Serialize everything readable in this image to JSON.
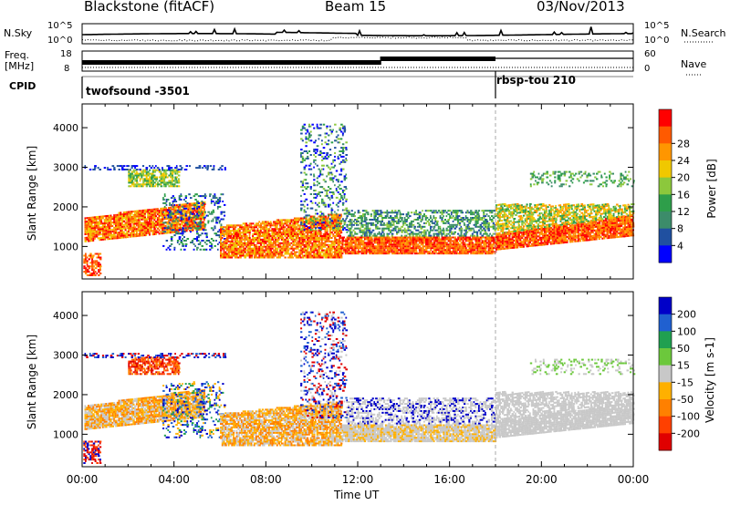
{
  "header": {
    "station": "Blackstone (fitACF)",
    "beam": "Beam 15",
    "date": "03/Nov/2013"
  },
  "sky_panel": {
    "left_label": "N.Sky",
    "right_label": "N.Search",
    "tick_top": "10^5",
    "tick_bottom": "10^0",
    "right_tick_top": "10^5",
    "right_tick_bottom": "10^0"
  },
  "freq_panel": {
    "left_label_line1": "Freq.",
    "left_label_line2": "[MHz]",
    "right_label": "Nave",
    "left_tick_top": "18",
    "left_tick_bottom": "8",
    "right_tick_top": "60",
    "right_tick_bottom": "0"
  },
  "cpid_panel": {
    "label": "CPID",
    "mode1": "twofsound -3501",
    "mode2": "rbsp-tou 210"
  },
  "colors": {
    "power": [
      "#0000ff",
      "#2050a0",
      "#3c8c6a",
      "#2e9e4a",
      "#8cc83c",
      "#f0c800",
      "#ff9600",
      "#ff5a00",
      "#ff0000"
    ],
    "velocity": [
      "#0000c8",
      "#2060d0",
      "#20a050",
      "#6cc83c",
      "#c8c8c8",
      "#ffb000",
      "#ff8000",
      "#ff4000",
      "#e00000"
    ]
  },
  "chart_data": [
    {
      "type": "heatmap",
      "title": "",
      "ylabel": "Slant Range [km]",
      "xlabel": "",
      "ylim": [
        180,
        4600
      ],
      "x_ticks": [
        "00:00",
        "04:00",
        "08:00",
        "12:00",
        "16:00",
        "20:00",
        "00:00"
      ],
      "y_ticks": [
        1000,
        2000,
        3000,
        4000
      ],
      "colorbar_label": "Power [dB]",
      "colorbar_ticks": [
        4,
        8,
        12,
        16,
        20,
        24,
        28
      ],
      "grid": false
    },
    {
      "type": "heatmap",
      "title": "",
      "ylabel": "Slant Range [km]",
      "xlabel": "Time UT",
      "ylim": [
        180,
        4600
      ],
      "x_ticks": [
        "00:00",
        "04:00",
        "08:00",
        "12:00",
        "16:00",
        "20:00",
        "00:00"
      ],
      "y_ticks": [
        1000,
        2000,
        3000,
        4000
      ],
      "colorbar_label": "Velocity [m s-1]",
      "colorbar_ticks": [
        200,
        100,
        50,
        15,
        -15,
        -50,
        -100,
        -200
      ],
      "grid": false
    }
  ]
}
